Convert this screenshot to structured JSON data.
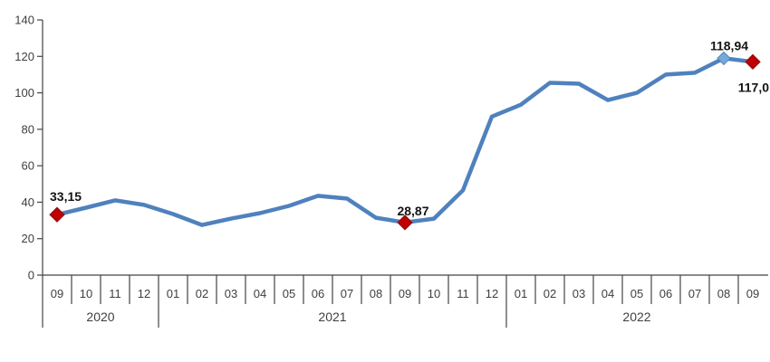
{
  "chart_data": {
    "type": "line",
    "title": "",
    "xlabel": "",
    "ylabel": "",
    "ylim": [
      0,
      140
    ],
    "yticks": [
      0,
      20,
      40,
      60,
      80,
      100,
      120,
      140
    ],
    "grid": false,
    "legend": "none",
    "decimal_separator": ",",
    "categories": [
      "09",
      "10",
      "11",
      "12",
      "01",
      "02",
      "03",
      "04",
      "05",
      "06",
      "07",
      "08",
      "09",
      "10",
      "11",
      "12",
      "01",
      "02",
      "03",
      "04",
      "05",
      "06",
      "07",
      "08",
      "09"
    ],
    "year_groups": [
      {
        "label": "2020",
        "start": 0,
        "count": 4
      },
      {
        "label": "2021",
        "start": 4,
        "count": 12
      },
      {
        "label": "2022",
        "start": 16,
        "count": 9
      }
    ],
    "series": [
      {
        "name": "annual-change-line",
        "values": [
          33.15,
          37,
          41,
          38.5,
          33.5,
          27.5,
          31,
          34,
          38,
          43.5,
          42,
          31.5,
          28.87,
          31,
          46.5,
          87,
          93.5,
          105.5,
          105,
          96,
          100,
          110,
          111,
          118.94,
          117.0
        ]
      }
    ],
    "annotations": [
      {
        "index": 0,
        "text": "33,15",
        "marker": "red-diamond",
        "placement": "above-left"
      },
      {
        "index": 12,
        "text": "28,87",
        "marker": "red-diamond",
        "placement": "above"
      },
      {
        "index": 23,
        "text": "118,94",
        "marker": "blue-diamond",
        "placement": "above-peak"
      },
      {
        "index": 24,
        "text": "117,0",
        "marker": "red-diamond",
        "placement": "below-right"
      }
    ],
    "colors": {
      "line": "#4F81BD",
      "red_marker": "#C00000",
      "red_marker_edge": "#8B1414",
      "blue_marker": "#74A9DC",
      "blue_marker_edge": "#4F81BD",
      "axis": "#444444",
      "tick_text": "#3f3f3f",
      "label_text": "#141414"
    }
  }
}
